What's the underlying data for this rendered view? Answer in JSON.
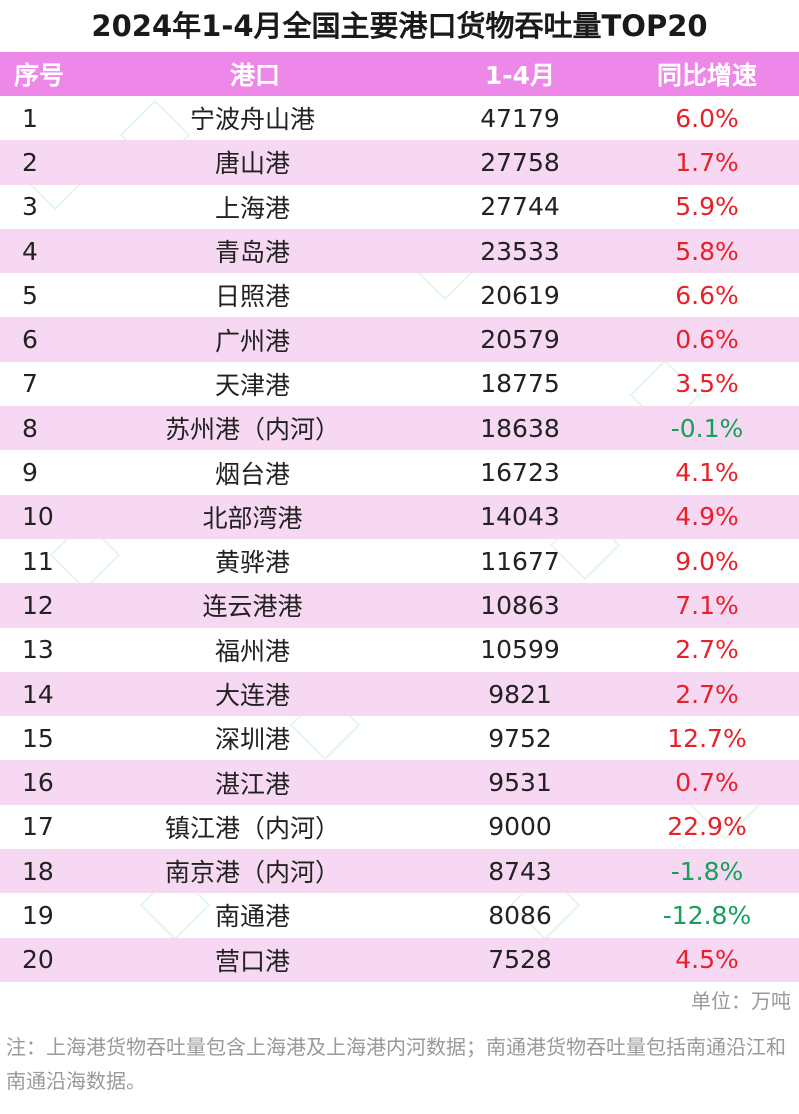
{
  "title": "2024年1-4月全国主要港口货物吞吐量TOP20",
  "colors": {
    "header_bg": "#ee88e8",
    "shade_bg": "#f6d8f3",
    "positive": "#e8202a",
    "negative": "#15a05a"
  },
  "headers": {
    "rank": "序号",
    "port": "港口",
    "volume": "1-4月",
    "yoy": "同比增速"
  },
  "rows": [
    {
      "rank": "1",
      "port": "宁波舟山港",
      "volume": "47179",
      "yoy": "6.0%"
    },
    {
      "rank": "2",
      "port": "唐山港",
      "volume": "27758",
      "yoy": "1.7%"
    },
    {
      "rank": "3",
      "port": "上海港",
      "volume": "27744",
      "yoy": "5.9%"
    },
    {
      "rank": "4",
      "port": "青岛港",
      "volume": "23533",
      "yoy": "5.8%"
    },
    {
      "rank": "5",
      "port": "日照港",
      "volume": "20619",
      "yoy": "6.6%"
    },
    {
      "rank": "6",
      "port": "广州港",
      "volume": "20579",
      "yoy": "0.6%"
    },
    {
      "rank": "7",
      "port": "天津港",
      "volume": "18775",
      "yoy": "3.5%"
    },
    {
      "rank": "8",
      "port": "苏州港（内河）",
      "volume": "18638",
      "yoy": "-0.1%"
    },
    {
      "rank": "9",
      "port": "烟台港",
      "volume": "16723",
      "yoy": "4.1%"
    },
    {
      "rank": "10",
      "port": "北部湾港",
      "volume": "14043",
      "yoy": "4.9%"
    },
    {
      "rank": "11",
      "port": "黄骅港",
      "volume": "11677",
      "yoy": "9.0%"
    },
    {
      "rank": "12",
      "port": "连云港港",
      "volume": "10863",
      "yoy": "7.1%"
    },
    {
      "rank": "13",
      "port": "福州港",
      "volume": "10599",
      "yoy": "2.7%"
    },
    {
      "rank": "14",
      "port": "大连港",
      "volume": "9821",
      "yoy": "2.7%"
    },
    {
      "rank": "15",
      "port": "深圳港",
      "volume": "9752",
      "yoy": "12.7%"
    },
    {
      "rank": "16",
      "port": "湛江港",
      "volume": "9531",
      "yoy": "0.7%"
    },
    {
      "rank": "17",
      "port": "镇江港（内河）",
      "volume": "9000",
      "yoy": "22.9%"
    },
    {
      "rank": "18",
      "port": "南京港（内河）",
      "volume": "8743",
      "yoy": "-1.8%"
    },
    {
      "rank": "19",
      "port": "南通港",
      "volume": "8086",
      "yoy": "-12.8%"
    },
    {
      "rank": "20",
      "port": "营口港",
      "volume": "7528",
      "yoy": "4.5%"
    }
  ],
  "unit": "单位：万吨",
  "note": "注：上海港货物吞吐量包含上海港及上海港内河数据；南通港货物吞吐量包括南通沿江和南通沿海数据。",
  "chart_data": {
    "type": "table",
    "title": "2024年1-4月全国主要港口货物吞吐量TOP20",
    "columns": [
      "序号",
      "港口",
      "1-4月",
      "同比增速"
    ],
    "unit": "单位：万吨",
    "categories": [
      "宁波舟山港",
      "唐山港",
      "上海港",
      "青岛港",
      "日照港",
      "广州港",
      "天津港",
      "苏州港（内河）",
      "烟台港",
      "北部湾港",
      "黄骅港",
      "连云港港",
      "福州港",
      "大连港",
      "深圳港",
      "湛江港",
      "镇江港（内河）",
      "南京港（内河）",
      "南通港",
      "营口港"
    ],
    "series": [
      {
        "name": "1-4月",
        "values": [
          47179,
          27758,
          27744,
          23533,
          20619,
          20579,
          18775,
          18638,
          16723,
          14043,
          11677,
          10863,
          10599,
          9821,
          9752,
          9531,
          9000,
          8743,
          8086,
          7528
        ]
      },
      {
        "name": "同比增速",
        "values": [
          6.0,
          1.7,
          5.9,
          5.8,
          6.6,
          0.6,
          3.5,
          -0.1,
          4.1,
          4.9,
          9.0,
          7.1,
          2.7,
          2.7,
          12.7,
          0.7,
          22.9,
          -1.8,
          -12.8,
          4.5
        ]
      }
    ]
  }
}
